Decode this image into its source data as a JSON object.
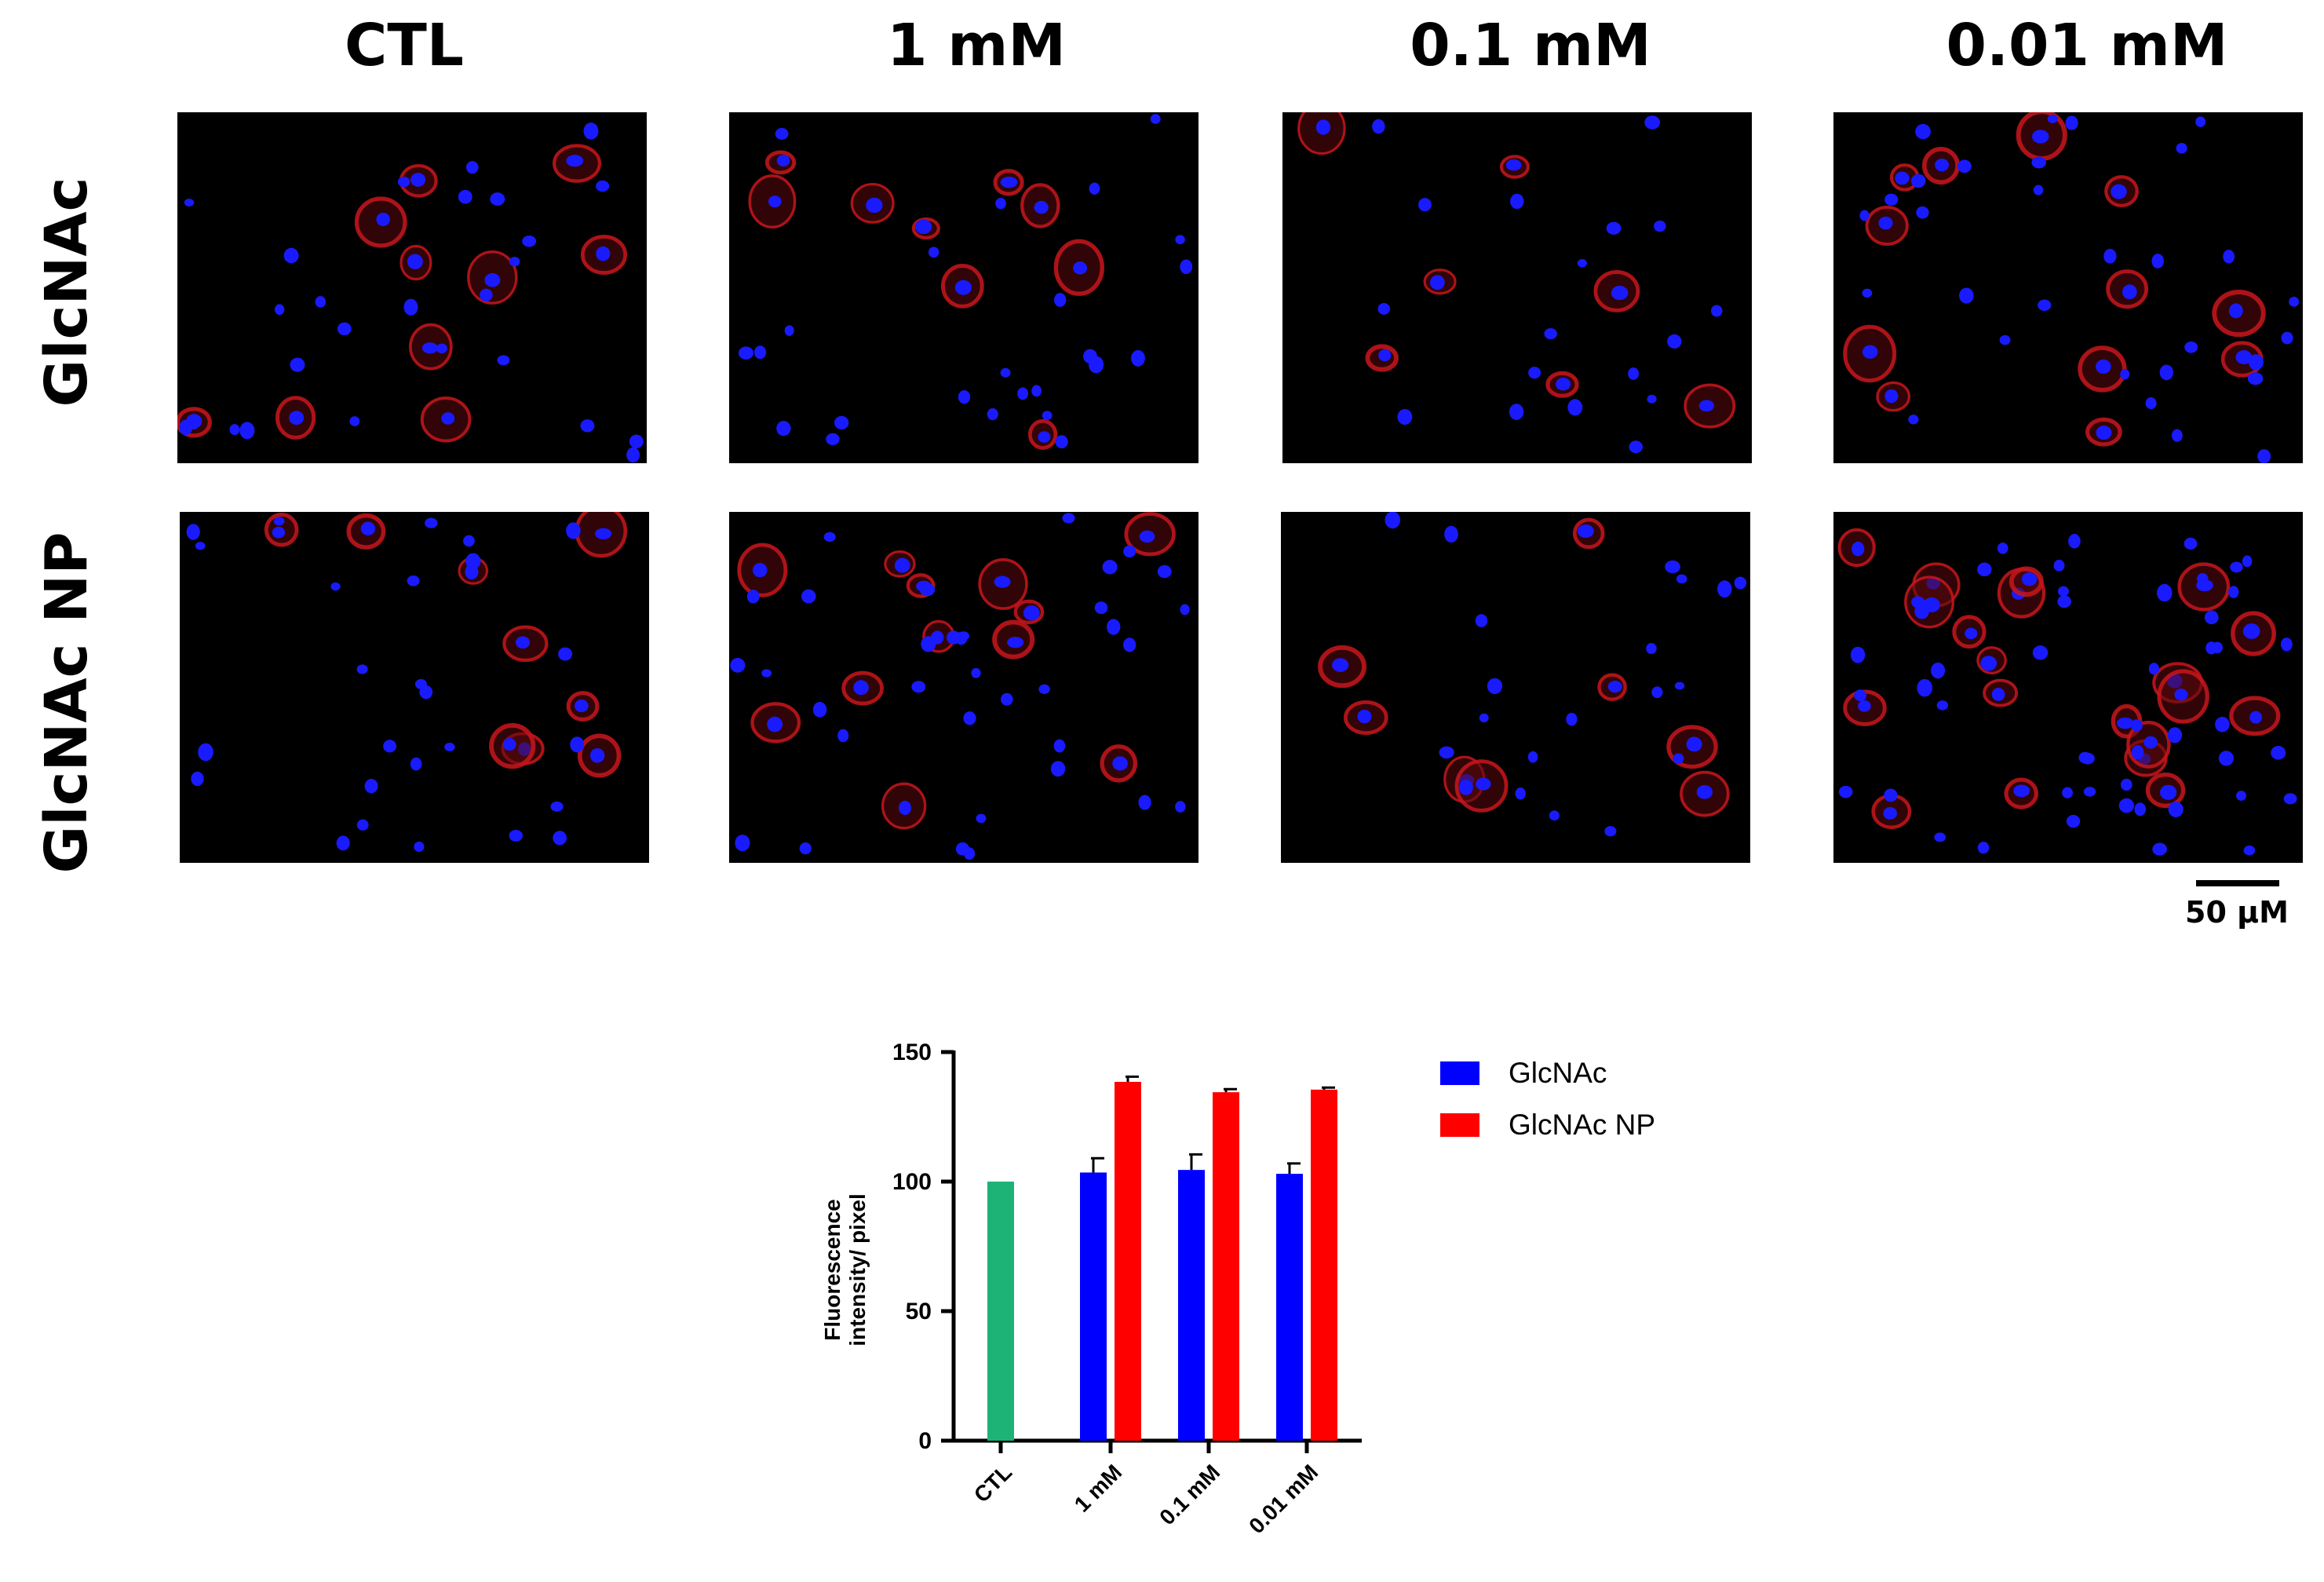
{
  "columns": [
    "CTL",
    "1 mM",
    "0.1 mM",
    "0.01 mM"
  ],
  "rows": [
    "GlcNAc",
    "GlcNAc NP"
  ],
  "scale_bar": {
    "label": "50 µM"
  },
  "colors": {
    "nuclei": "#1a1aff",
    "membrane": "#c8161c",
    "panel_bg": "#000000",
    "glcnac": "#0000ff",
    "glcnac_np": "#ff0000",
    "ctl": "#1db377"
  },
  "chart_data": {
    "type": "bar",
    "categories": [
      "CTL",
      "1 mM",
      "0.1 mM",
      "0.01 mM"
    ],
    "ylabel": "Fluorescence intensity/ pixel",
    "ylabel_lines": [
      "Fluorescence",
      "intensity/ pixel"
    ],
    "ylim": [
      0,
      150
    ],
    "yticks": [
      "0",
      "50",
      "100",
      "150"
    ],
    "legend_position": "right",
    "ctl": {
      "value": 100,
      "error": 0,
      "color": "#1db377"
    },
    "series": [
      {
        "name": "GlcNAc",
        "color": "#0000ff",
        "values": [
          null,
          103.5,
          104.5,
          103
        ],
        "errors": [
          null,
          5.5,
          6,
          4
        ]
      },
      {
        "name": "GlcNAc NP",
        "color": "#ff0000",
        "values": [
          null,
          138.5,
          134.5,
          135.5
        ],
        "errors": [
          null,
          2,
          1.2,
          0.8
        ]
      }
    ]
  }
}
